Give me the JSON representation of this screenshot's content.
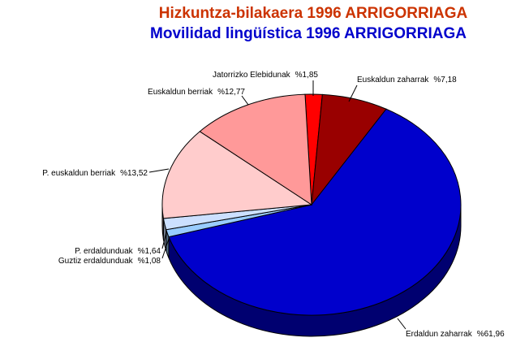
{
  "chart_data": {
    "type": "pie",
    "title": "Hizkuntza-bilakaera 1996 ARRIGORRIAGA",
    "subtitle": "Movilidad lingüística 1996 ARRIGORRIAGA",
    "categories": [
      "Jatorrizko Elebidunak",
      "Euskaldun zaharrak",
      "Erdaldun zaharrak",
      "Guztiz erdaldunduak",
      "P. erdaldunduak",
      "P. euskaldun berriak",
      "Euskaldun berriak"
    ],
    "values": [
      1.85,
      7.18,
      61.96,
      1.08,
      1.64,
      13.52,
      12.77
    ],
    "value_labels": [
      "%1,85",
      "%7,18",
      "%61,96",
      "%1,08",
      "%1,64",
      "%13,52",
      "%12,77"
    ],
    "colors": [
      "#ff0000",
      "#990000",
      "#0000cc",
      "#99ccff",
      "#cce0ff",
      "#ffcccc",
      "#ff9999"
    ]
  }
}
